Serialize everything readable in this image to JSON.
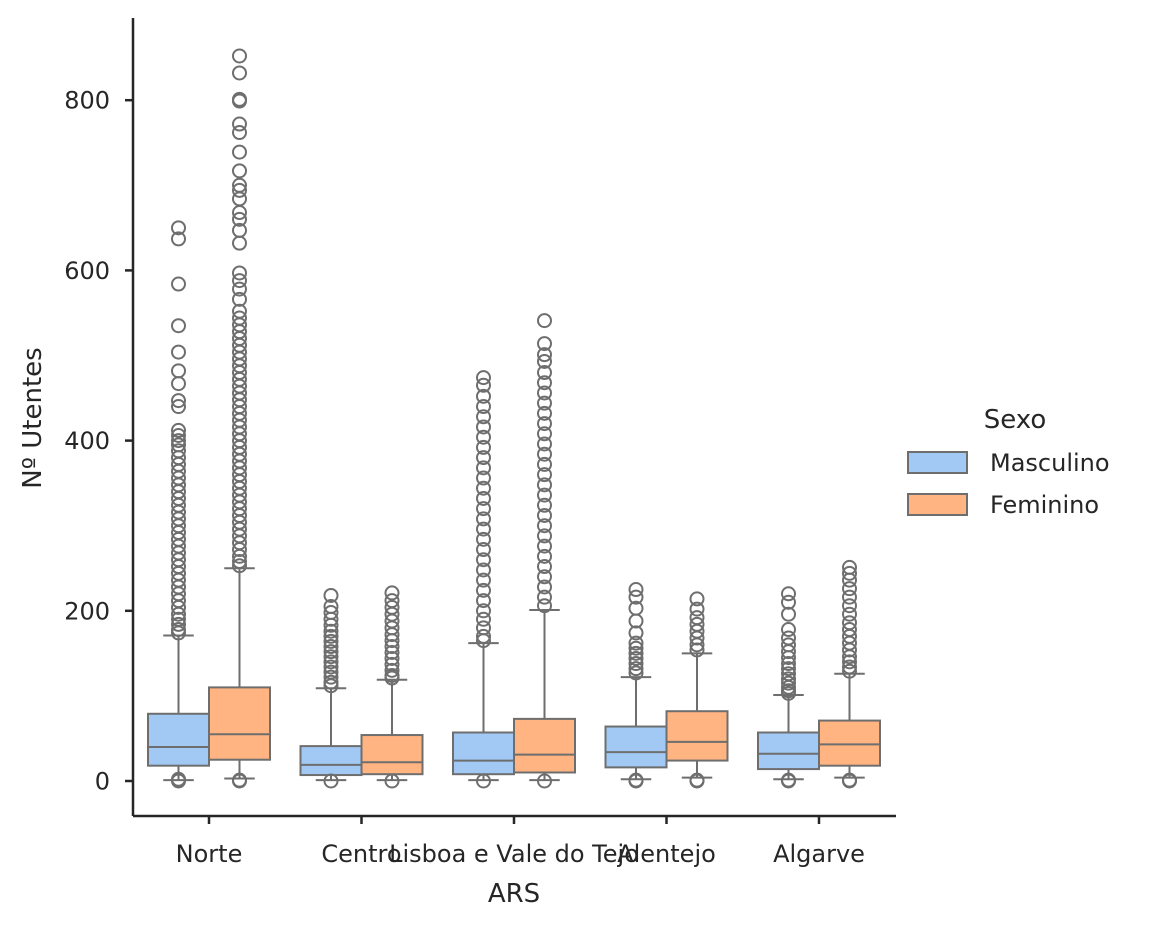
{
  "chart_data": {
    "type": "box",
    "xlabel": "ARS",
    "ylabel": "Nº Utentes",
    "categories": [
      "Norte",
      "Centro",
      "Lisboa e Vale do Tejo",
      "Alentejo",
      "Algarve"
    ],
    "y_ticks": [
      "0",
      "200",
      "400",
      "600",
      "800"
    ],
    "y_tick_values": [
      0,
      200,
      400,
      600,
      800
    ],
    "ylim": [
      -42,
      895
    ],
    "grid": false,
    "legend": {
      "title": "Sexo",
      "placement": "right",
      "entries": [
        "Masculino",
        "Feminino"
      ]
    },
    "colors": {
      "Masculino": "#a1c9f4",
      "Feminino": "#ffb482",
      "edge": "#6e6e6e"
    },
    "series": [
      {
        "name": "Masculino",
        "boxes": [
          {
            "q1": 18,
            "median": 40,
            "q3": 79,
            "whisker_low": 1,
            "whisker_high": 171,
            "outliers_low": [
              0,
              2
            ],
            "outliers_high": [
              650,
              637,
              584,
              535,
              504,
              482,
              467,
              447,
              440,
              412,
              406,
              400,
              395,
              388,
              380,
              372,
              364,
              356,
              348,
              340,
              332,
              324,
              316,
              308,
              300,
              292,
              284,
              276,
              268,
              260,
              252,
              244,
              236,
              228,
              220,
              212,
              204,
              196,
              190,
              184,
              178,
              174
            ]
          },
          {
            "q1": 7,
            "median": 19,
            "q3": 41,
            "whisker_low": 1,
            "whisker_high": 109,
            "outliers_low": [
              0
            ],
            "outliers_high": [
              218,
              205,
              198,
              190,
              183,
              176,
              170,
              164,
              158,
              152,
              146,
              140,
              134,
              128,
              122,
              116,
              112
            ]
          },
          {
            "q1": 8,
            "median": 24,
            "q3": 57,
            "whisker_low": 1,
            "whisker_high": 162,
            "outliers_low": [
              0
            ],
            "outliers_high": [
              474,
              465,
              452,
              440,
              428,
              416,
              404,
              392,
              380,
              368,
              356,
              344,
              332,
              320,
              308,
              296,
              284,
              272,
              260,
              248,
              236,
              224,
              212,
              200,
              190,
              180,
              170,
              165
            ]
          },
          {
            "q1": 16,
            "median": 34,
            "q3": 64,
            "whisker_low": 2,
            "whisker_high": 122,
            "outliers_low": [
              0,
              1
            ],
            "outliers_high": [
              225,
              216,
              203,
              188,
              174,
              162,
              156,
              150,
              144,
              138,
              132,
              127
            ]
          },
          {
            "q1": 14,
            "median": 32,
            "q3": 57,
            "whisker_low": 2,
            "whisker_high": 101,
            "outliers_low": [
              0,
              1
            ],
            "outliers_high": [
              220,
              210,
              196,
              178,
              168,
              160,
              152,
              145,
              138,
              132,
              126,
              120,
              115,
              110,
              106,
              103
            ]
          }
        ]
      },
      {
        "name": "Feminino",
        "boxes": [
          {
            "q1": 25,
            "median": 55,
            "q3": 110,
            "whisker_low": 3,
            "whisker_high": 250,
            "outliers_low": [
              0,
              1
            ],
            "outliers_high": [
              852,
              832,
              801,
              799,
              772,
              762,
              739,
              717,
              700,
              694,
              684,
              668,
              660,
              647,
              632,
              597,
              588,
              578,
              566,
              552,
              544,
              536,
              528,
              520,
              512,
              504,
              496,
              488,
              480,
              472,
              464,
              456,
              448,
              440,
              432,
              424,
              416,
              408,
              400,
              392,
              384,
              376,
              368,
              360,
              352,
              344,
              336,
              328,
              320,
              312,
              304,
              296,
              288,
              280,
              272,
              264,
              258,
              253
            ]
          },
          {
            "q1": 8,
            "median": 22,
            "q3": 54,
            "whisker_low": 1,
            "whisker_high": 119,
            "outliers_low": [
              0
            ],
            "outliers_high": [
              221,
              212,
              204,
              196,
              188,
              180,
              172,
              165,
              158,
              151,
              144,
              137,
              130,
              124,
              121
            ]
          },
          {
            "q1": 10,
            "median": 31,
            "q3": 73,
            "whisker_low": 1,
            "whisker_high": 201,
            "outliers_low": [
              0
            ],
            "outliers_high": [
              541,
              514,
              501,
              493,
              480,
              468,
              456,
              444,
              432,
              420,
              408,
              396,
              384,
              372,
              360,
              348,
              336,
              324,
              312,
              300,
              288,
              276,
              264,
              252,
              240,
              228,
              216,
              206
            ]
          },
          {
            "q1": 24,
            "median": 46,
            "q3": 82,
            "whisker_low": 4,
            "whisker_high": 150,
            "outliers_low": [
              0,
              1
            ],
            "outliers_high": [
              214,
              202,
              192,
              184,
              176,
              168,
              160,
              154
            ]
          },
          {
            "q1": 18,
            "median": 43,
            "q3": 71,
            "whisker_low": 4,
            "whisker_high": 126,
            "outliers_low": [
              0,
              1
            ],
            "outliers_high": [
              251,
              244,
              236,
              226,
              216,
              206,
              196,
              186,
              178,
              170,
              162,
              154,
              146,
              140,
              134,
              129
            ]
          }
        ]
      }
    ]
  }
}
